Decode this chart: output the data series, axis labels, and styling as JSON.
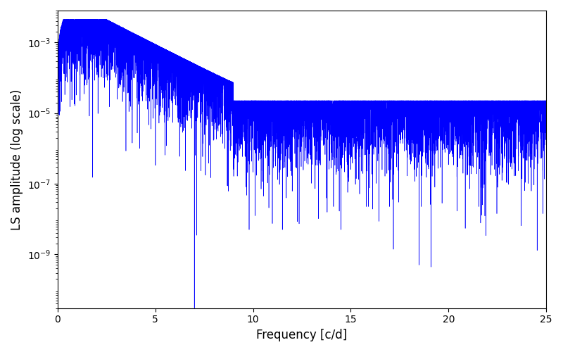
{
  "title": "",
  "xlabel": "Frequency [c/d]",
  "ylabel": "LS amplitude (log scale)",
  "xlim": [
    0,
    25
  ],
  "ylim": [
    3e-11,
    0.008
  ],
  "line_color": "#0000ff",
  "line_width": 0.4,
  "figsize": [
    8.0,
    5.0
  ],
  "dpi": 100,
  "yscale": "log",
  "yticks": [
    1e-09,
    1e-07,
    1e-05,
    0.001
  ],
  "xticks": [
    0,
    5,
    10,
    15,
    20,
    25
  ],
  "seed": 12345,
  "n_points": 8000,
  "freq_max": 25.0,
  "background_color": "#ffffff",
  "null1_freq": 7.0,
  "null1_val": 3e-11,
  "null2_freq": 18.5,
  "null2_val": 5e-10
}
